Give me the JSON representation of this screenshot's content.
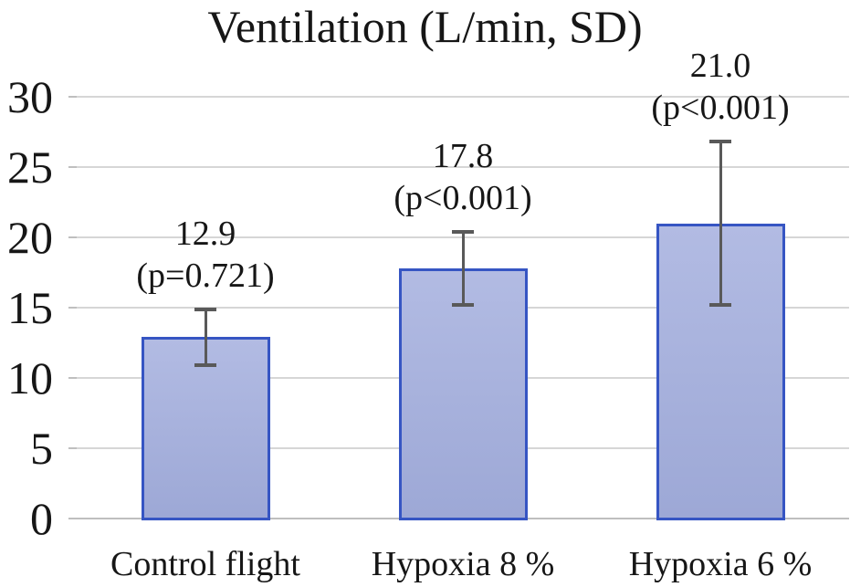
{
  "figure": {
    "title": "Ventilation (L/min, SD)"
  },
  "chart_data": {
    "type": "bar",
    "title": "Ventilation (L/min, SD)",
    "categories": [
      "Control flight",
      "Hypoxia 8 %",
      "Hypoxia 6 %"
    ],
    "values": [
      12.9,
      17.8,
      21.0
    ],
    "value_labels": [
      "12.9",
      "17.8",
      "21.0"
    ],
    "p_value_labels": [
      "(p=0.721)",
      "(p<0.001)",
      "(p<0.001)"
    ],
    "error_bars": [
      {
        "low": 10.9,
        "high": 14.9
      },
      {
        "low": 15.2,
        "high": 20.4
      },
      {
        "low": 15.2,
        "high": 26.8
      }
    ],
    "y_axis": {
      "ticks": [
        0,
        5,
        10,
        15,
        20,
        25,
        30
      ],
      "min": 0,
      "max": 30
    },
    "xlabel": "",
    "ylabel": "",
    "legend": "none",
    "grid": "horizontal",
    "colors": {
      "bar_fill_top": "#b2bbe3",
      "bar_fill_bottom": "#9da8d6",
      "bar_border": "#3655c3",
      "error_bar": "#595959",
      "gridline": "#d6d6d6",
      "axis_line": "#bfbfbf",
      "text": "#161616",
      "background": "#ffffff"
    }
  }
}
